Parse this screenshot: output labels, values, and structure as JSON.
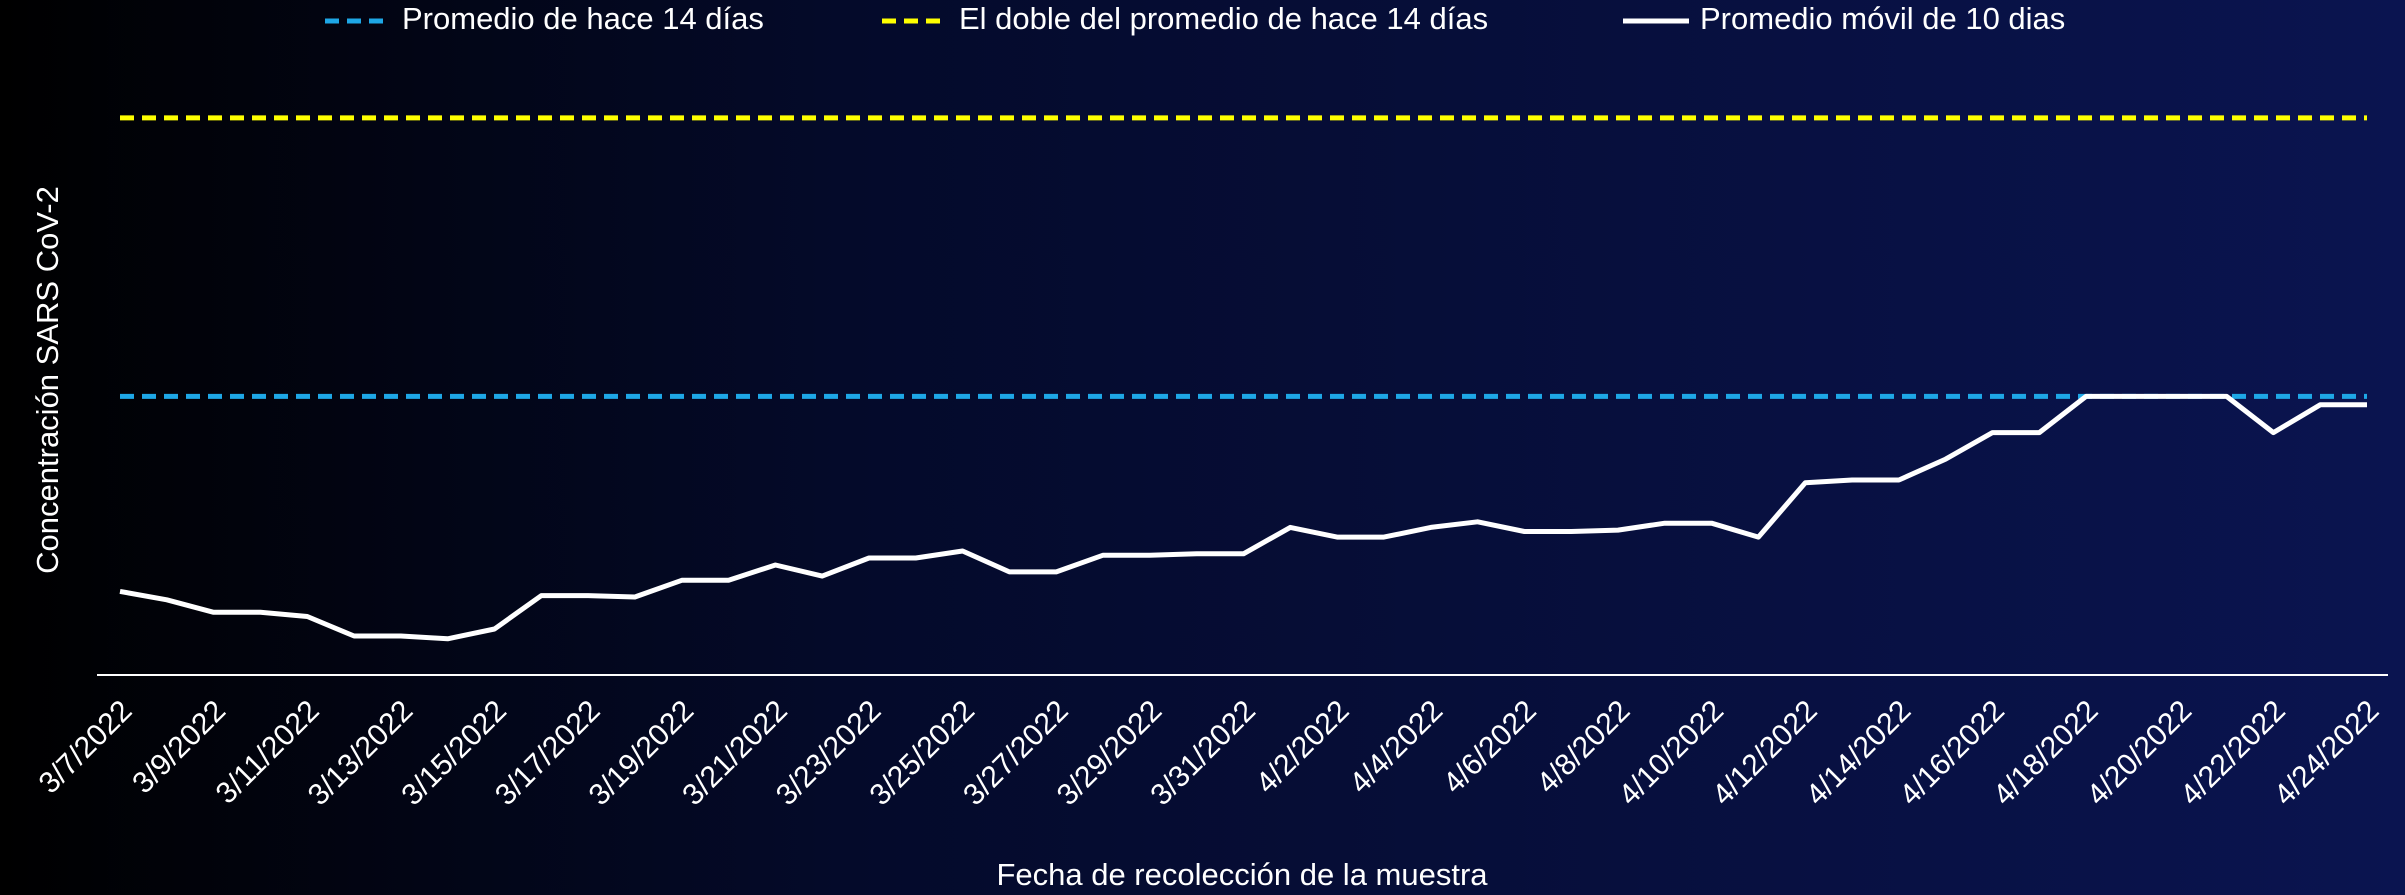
{
  "chart_data": {
    "type": "line",
    "x_label": "Fecha de recolección de la muestra",
    "y_label": "Concentración SARS CoV-2",
    "categories": [
      "3/7/2022",
      null,
      "3/9/2022",
      null,
      "3/11/2022",
      null,
      "3/13/2022",
      null,
      "3/15/2022",
      null,
      "3/17/2022",
      null,
      "3/19/2022",
      null,
      "3/21/2022",
      null,
      "3/23/2022",
      null,
      "3/25/2022",
      null,
      "3/27/2022",
      null,
      "3/29/2022",
      null,
      "3/31/2022",
      null,
      "4/2/2022",
      null,
      "4/4/2022",
      null,
      "4/6/2022",
      null,
      "4/8/2022",
      null,
      "4/10/2022",
      null,
      "4/12/2022",
      null,
      "4/14/2022",
      null,
      "4/16/2022",
      null,
      "4/18/2022",
      null,
      "4/20/2022",
      null,
      "4/22/2022",
      null,
      "4/24/2022"
    ],
    "series": [
      {
        "name": "Promedio de hace 14 días",
        "color": "#1ea7e6",
        "dashed": true,
        "values": [
          1,
          1,
          1,
          1,
          1,
          1,
          1,
          1,
          1,
          1,
          1,
          1,
          1,
          1,
          1,
          1,
          1,
          1,
          1,
          1,
          1,
          1,
          1,
          1,
          1,
          1,
          1,
          1,
          1,
          1,
          1,
          1,
          1,
          1,
          1,
          1,
          1,
          1,
          1,
          1,
          1,
          1,
          1,
          1,
          1,
          1,
          1,
          1,
          1
        ]
      },
      {
        "name": "El doble del promedio de hace 14 días",
        "color": "#ffff00",
        "dashed": true,
        "values": [
          2,
          2,
          2,
          2,
          2,
          2,
          2,
          2,
          2,
          2,
          2,
          2,
          2,
          2,
          2,
          2,
          2,
          2,
          2,
          2,
          2,
          2,
          2,
          2,
          2,
          2,
          2,
          2,
          2,
          2,
          2,
          2,
          2,
          2,
          2,
          2,
          2,
          2,
          2,
          2,
          2,
          2,
          2,
          2,
          2,
          2,
          2,
          2,
          2
        ]
      },
      {
        "name": "Promedio móvil de 10 dias",
        "color": "#ffffff",
        "dashed": false,
        "values": [
          0.3,
          0.27,
          0.225,
          0.225,
          0.21,
          0.14,
          0.14,
          0.13,
          0.165,
          0.285,
          0.285,
          0.28,
          0.34,
          0.34,
          0.395,
          0.355,
          0.42,
          0.42,
          0.445,
          0.37,
          0.37,
          0.43,
          0.43,
          0.435,
          0.435,
          0.53,
          0.495,
          0.495,
          0.53,
          0.55,
          0.515,
          0.515,
          0.52,
          0.545,
          0.545,
          0.495,
          0.69,
          0.7,
          0.7,
          0.775,
          0.87,
          0.87,
          1.0,
          1.0,
          1.0,
          1.0,
          0.87,
          0.97,
          0.97
        ]
      }
    ],
    "ylim": [
      0,
      2.1
    ]
  }
}
